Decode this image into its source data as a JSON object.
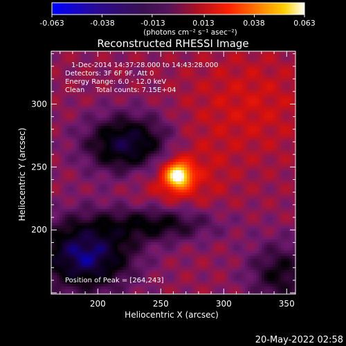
{
  "colorbar": {
    "tick_labels": [
      "-0.063",
      "-0.038",
      "-0.013",
      "0.013",
      "0.038",
      "0.063"
    ],
    "tick_values": [
      -0.063,
      -0.038,
      -0.013,
      0.013,
      0.038,
      0.063
    ],
    "range": [
      -0.063,
      0.063
    ],
    "unit_label": "(photons cm⁻² s⁻¹ asec⁻²)"
  },
  "chart_data": {
    "type": "heatmap",
    "title": "Reconstructed RHESSI Image",
    "xlabel": "Heliocentric X (arcsec)",
    "ylabel": "Heliocentric Y (arcsec)",
    "xlim": [
      163,
      357
    ],
    "ylim": [
      149,
      342
    ],
    "x_ticks": [
      200,
      250,
      300,
      350
    ],
    "y_ticks": [
      200,
      250,
      300
    ],
    "x_tick_labels": [
      "200",
      "250",
      "300",
      "350"
    ],
    "y_tick_labels": [
      "200",
      "250",
      "300"
    ],
    "peak": {
      "x": 264,
      "y": 243,
      "value": 0.063
    },
    "colormap": [
      "#0000ff",
      "#1a0040",
      "#000000",
      "#3c0a40",
      "#6e1a6e",
      "#d01010",
      "#ff2000",
      "#ff7800",
      "#ffd000",
      "#ffffff"
    ],
    "annotations": [
      "1-Dec-2014 14:37:28.000 to 14:43:28.000",
      "Detectors: 3F 6F 9F, Att 0",
      "Energy Range: 6.0 - 12.0 keV",
      "Clean     Total counts: 7.15E+04",
      "Position of Peak = [264,243]"
    ]
  },
  "timestamp": "20-May-2022 02:58"
}
